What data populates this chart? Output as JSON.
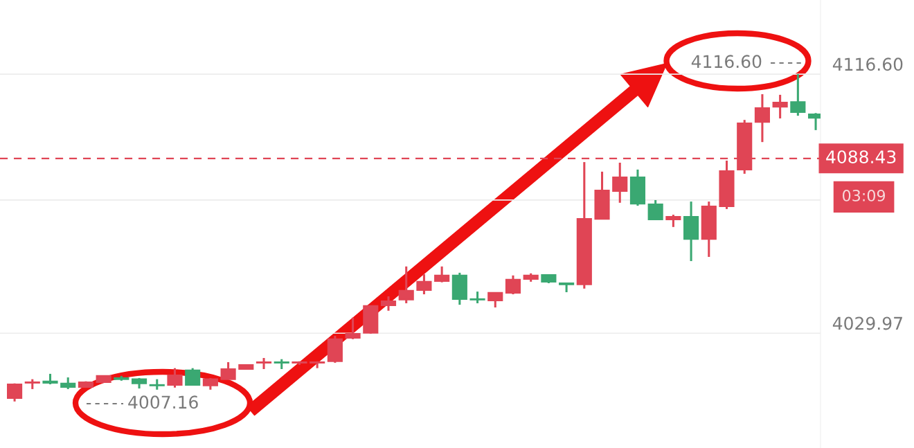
{
  "chart_data": {
    "type": "candlestick",
    "categories": [
      null,
      null,
      null,
      null,
      null,
      null,
      null,
      null,
      null,
      null,
      null,
      null,
      null,
      null,
      null,
      null,
      null,
      null,
      null,
      null,
      null,
      null,
      null,
      null,
      null,
      null,
      null,
      null,
      null,
      null,
      null,
      null,
      null,
      null,
      null,
      null,
      null,
      null,
      null,
      null,
      null,
      null,
      null,
      null,
      null,
      null
    ],
    "ohlc": [
      [
        4008.3,
        4013.2,
        4007.16,
        4012.9
      ],
      [
        4013.4,
        4014.6,
        4011.3,
        4013.6
      ],
      [
        4013.9,
        4016.4,
        4012.9,
        4013.4
      ],
      [
        4013.2,
        4015.2,
        4011.3,
        4012.0
      ],
      [
        4012.0,
        4013.9,
        4011.8,
        4013.6
      ],
      [
        4013.6,
        4015.9,
        4013.4,
        4015.7
      ],
      [
        4015.0,
        4015.7,
        4014.1,
        4014.6
      ],
      [
        4014.6,
        4015.0,
        4011.5,
        4013.2
      ],
      [
        4012.7,
        4014.6,
        4011.1,
        4012.5
      ],
      [
        4012.7,
        4018.3,
        4011.8,
        4015.9
      ],
      [
        4017.6,
        4018.3,
        4012.5,
        4012.7
      ],
      [
        4012.5,
        4015.0,
        4011.1,
        4014.6
      ],
      [
        4014.6,
        4020.3,
        4014.6,
        4018.0
      ],
      [
        4018.0,
        4019.4,
        4018.0,
        4019.4
      ],
      [
        4020.1,
        4021.7,
        4018.0,
        4020.3
      ],
      [
        4020.3,
        4021.3,
        4018.0,
        4020.1
      ],
      [
        4020.1,
        4020.6,
        4019.4,
        4020.3
      ],
      [
        4020.1,
        4020.6,
        4018.3,
        4020.3
      ],
      [
        4020.6,
        4029.1,
        4020.1,
        4028.0
      ],
      [
        4028.4,
        4035.2,
        4028.0,
        4029.8
      ],
      [
        4030.1,
        4039.3,
        4029.8,
        4039.1
      ],
      [
        4039.3,
        4042.3,
        4037.5,
        4040.7
      ],
      [
        4041.2,
        4052.3,
        4040.0,
        4044.2
      ],
      [
        4044.4,
        4049.7,
        4043.0,
        4047.2
      ],
      [
        4047.4,
        4052.3,
        4047.0,
        4049.3
      ],
      [
        4049.3,
        4050.2,
        4039.5,
        4041.4
      ],
      [
        4041.4,
        4043.9,
        4040.0,
        4041.2
      ],
      [
        4040.9,
        4043.7,
        4038.6,
        4043.5
      ],
      [
        4043.5,
        4049.3,
        4043.0,
        4047.9
      ],
      [
        4048.1,
        4050.0,
        4047.2,
        4049.3
      ],
      [
        4049.5,
        4049.5,
        4046.7,
        4047.2
      ],
      [
        4046.7,
        4046.7,
        4043.7,
        4046.3
      ],
      [
        4046.3,
        4087.2,
        4044.9,
        4068.2
      ],
      [
        4068.2,
        4084.0,
        4068.0,
        4077.7
      ],
      [
        4077.5,
        4087.0,
        4073.6,
        4082.1
      ],
      [
        4082.1,
        4084.7,
        4072.6,
        4073.3
      ],
      [
        4073.1,
        4074.5,
        4068.0,
        4068.0
      ],
      [
        4068.0,
        4069.6,
        4065.5,
        4068.9
      ],
      [
        4068.9,
        4074.0,
        4054.1,
        4061.5
      ],
      [
        4061.5,
        4074.0,
        4055.5,
        4072.4
      ],
      [
        4072.4,
        4087.7,
        4071.5,
        4084.2
      ],
      [
        4084.7,
        4101.3,
        4083.3,
        4100.2
      ],
      [
        4100.6,
        4109.9,
        4093.9,
        4105.3
      ],
      [
        4105.7,
        4109.7,
        4101.8,
        4107.1
      ],
      [
        4107.3,
        4116.6,
        4102.7,
        4103.9
      ],
      [
        4103.2,
        4103.6,
        4097.9,
        4102.0
      ]
    ],
    "colors": [
      "#e04555",
      "#e04555",
      "#3aa872",
      "#3aa872",
      "#e04555",
      "#e04555",
      "#3aa872",
      "#3aa872",
      "#3aa872",
      "#e04555",
      "#3aa872",
      "#e04555",
      "#e04555",
      "#e04555",
      "#e04555",
      "#3aa872",
      "#e04555",
      "#e04555",
      "#e04555",
      "#e04555",
      "#e04555",
      "#e04555",
      "#e04555",
      "#e04555",
      "#e04555",
      "#3aa872",
      "#3aa872",
      "#e04555",
      "#e04555",
      "#e04555",
      "#3aa872",
      "#3aa872",
      "#e04555",
      "#e04555",
      "#e04555",
      "#3aa872",
      "#3aa872",
      "#e04555",
      "#3aa872",
      "#e04555",
      "#e04555",
      "#e04555",
      "#e04555",
      "#e04555",
      "#3aa872",
      "#3aa872"
    ],
    "ylim": [
      3991.6,
      4141.4
    ],
    "yticks": [
      {
        "value": 4116.6,
        "label": "4116.60"
      },
      {
        "value": 4074.5,
        "label": null
      },
      {
        "value": 4029.97,
        "label": "4029.97"
      }
    ],
    "tick_labels": "y",
    "grid": "y",
    "ref_lines": [
      {
        "axis": "y",
        "value": 4088.43,
        "label": "4088.43",
        "color": "#e04555",
        "line_style": "dashed"
      }
    ],
    "annotations": [
      "4007.16",
      "4116.60",
      "03:09"
    ]
  }
}
